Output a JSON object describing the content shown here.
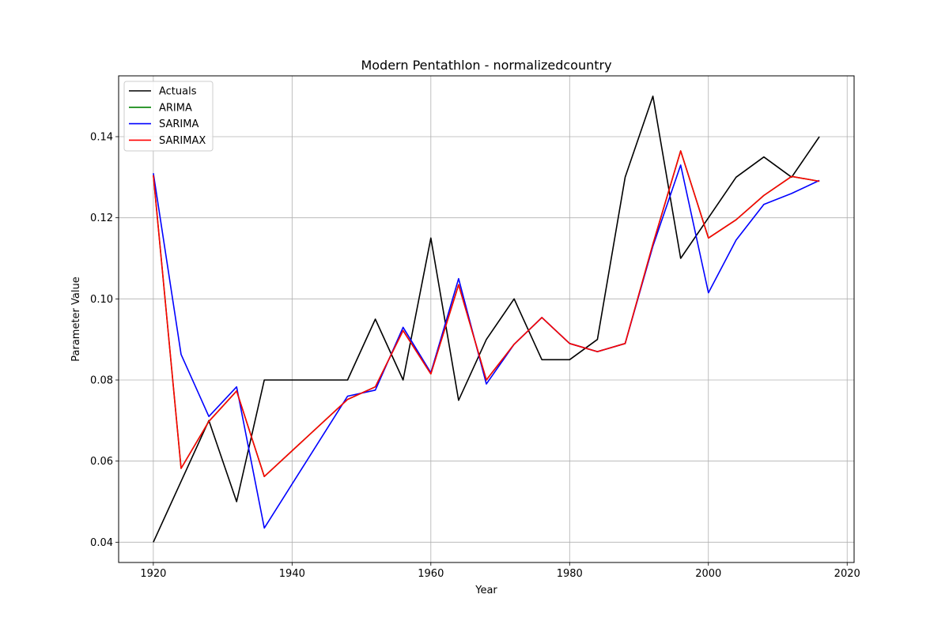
{
  "chart_data": {
    "type": "line",
    "title": "Modern Pentathlon - normalizedcountry",
    "xlabel": "Year",
    "ylabel": "Parameter Value",
    "xlim": [
      1915,
      2021
    ],
    "ylim": [
      0.035,
      0.155
    ],
    "xticks": [
      1920,
      1940,
      1960,
      1980,
      2000,
      2020
    ],
    "yticks": [
      0.04,
      0.06,
      0.08,
      0.1,
      0.12,
      0.14
    ],
    "xtick_labels": [
      "1920",
      "1940",
      "1960",
      "1980",
      "2000",
      "2020"
    ],
    "ytick_labels": [
      "0.04",
      "0.06",
      "0.08",
      "0.10",
      "0.12",
      "0.14"
    ],
    "grid": true,
    "legend_position": "top-left",
    "x": [
      1920,
      1924,
      1928,
      1932,
      1936,
      1948,
      1952,
      1956,
      1960,
      1964,
      1968,
      1972,
      1976,
      1980,
      1984,
      1988,
      1992,
      1996,
      2000,
      2004,
      2008,
      2012,
      2016
    ],
    "series": [
      {
        "name": "Actuals",
        "color": "#000000",
        "values": [
          0.04,
          0.055,
          0.07,
          0.05,
          0.08,
          0.08,
          0.095,
          0.08,
          0.115,
          0.075,
          0.09,
          0.1,
          0.085,
          0.085,
          0.09,
          0.13,
          0.15,
          0.11,
          0.12,
          0.13,
          0.135,
          0.13,
          0.14
        ]
      },
      {
        "name": "ARIMA",
        "color": "#008000",
        "values": [
          0.1305,
          0.0582,
          0.0698,
          0.0773,
          0.0562,
          0.0752,
          0.0783,
          0.0922,
          0.0815,
          0.1035,
          0.08,
          0.0888,
          0.0954,
          0.089,
          0.087,
          0.089,
          0.1135,
          0.1365,
          0.115,
          0.1195,
          0.1255,
          0.1302,
          0.129
        ]
      },
      {
        "name": "SARIMA",
        "color": "#0000ff",
        "values": [
          0.131,
          0.0863,
          0.071,
          0.0783,
          0.0435,
          0.076,
          0.0775,
          0.093,
          0.0818,
          0.105,
          0.079,
          0.0888,
          0.0954,
          0.089,
          0.087,
          0.089,
          0.113,
          0.133,
          0.1015,
          0.1145,
          0.1233,
          0.126,
          0.1292
        ]
      },
      {
        "name": "SARIMAX",
        "color": "#ff0000",
        "values": [
          0.1305,
          0.0582,
          0.0698,
          0.0773,
          0.0562,
          0.0752,
          0.0783,
          0.0922,
          0.0815,
          0.1035,
          0.08,
          0.0888,
          0.0954,
          0.089,
          0.087,
          0.089,
          0.1135,
          0.1365,
          0.115,
          0.1195,
          0.1255,
          0.1302,
          0.129
        ]
      }
    ]
  }
}
